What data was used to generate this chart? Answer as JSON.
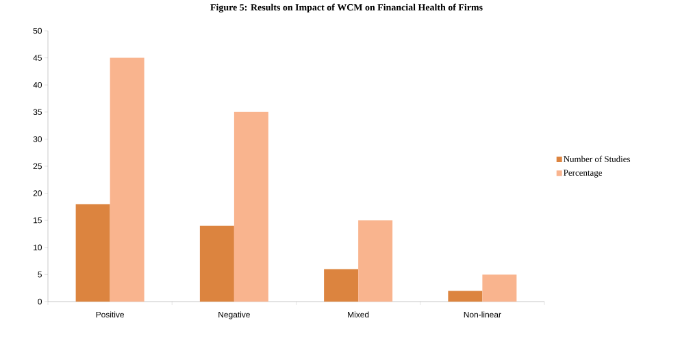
{
  "chart_data": {
    "type": "bar",
    "title": "Figure 5: Results on Impact of WCM on Financial Health of Firms",
    "categories": [
      "Positive",
      "Negative",
      "Mixed",
      "Non-linear"
    ],
    "series": [
      {
        "name": "Number of Studies",
        "color": "#dc843f",
        "values": [
          18,
          14,
          6,
          2
        ]
      },
      {
        "name": "Percentage",
        "color": "#f9b48e",
        "values": [
          45,
          35,
          15,
          5
        ]
      }
    ],
    "ylim": [
      0,
      50
    ],
    "yticks": [
      0,
      5,
      10,
      15,
      20,
      25,
      30,
      35,
      40,
      45,
      50
    ],
    "grid": false,
    "legend": "right"
  }
}
